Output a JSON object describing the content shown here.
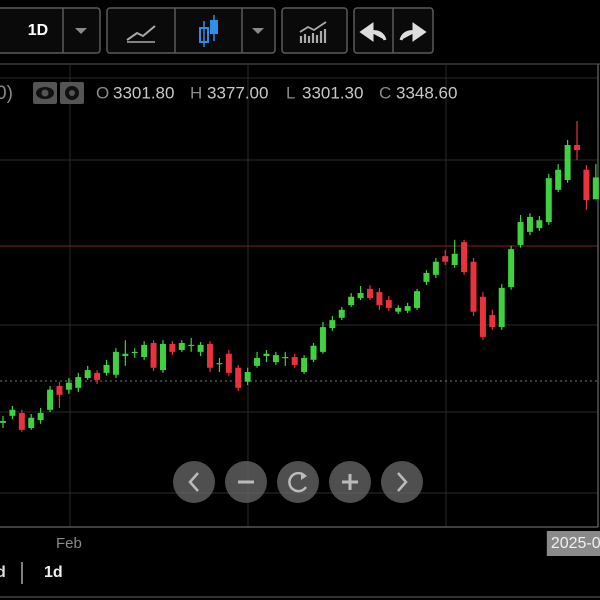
{
  "toolbar": {
    "interval": "1D"
  },
  "legend_fragment": "0)",
  "legend": {
    "labels": [
      "O",
      "H",
      "L",
      "C"
    ],
    "values": [
      "3301.80",
      "3377.00",
      "3301.30",
      "3348.60"
    ]
  },
  "footer": {
    "intervals": [
      "d",
      "1d"
    ]
  },
  "chart_data": {
    "type": "candlestick",
    "categories": [
      null,
      null,
      null,
      null,
      null,
      null,
      null,
      "Feb",
      null,
      null,
      null,
      null,
      null,
      null,
      null,
      null,
      null,
      null,
      null,
      null,
      null,
      null,
      null,
      null,
      null,
      null,
      null,
      null,
      null,
      null,
      null,
      null,
      null,
      null,
      null,
      null,
      null,
      null,
      null,
      null,
      null,
      null,
      null,
      null,
      null,
      null,
      null,
      null,
      null,
      null,
      null,
      null,
      null,
      null,
      null,
      null,
      null,
      null,
      null,
      null,
      null,
      null,
      null,
      "2025-0"
    ],
    "open": [
      2823,
      2838,
      2844,
      2812,
      2829,
      2851,
      2902,
      2894,
      2898,
      2919,
      2930,
      2930,
      2926,
      2966,
      2973,
      2964,
      2994,
      2936,
      2992,
      2979,
      2988,
      2975,
      2992,
      2949,
      2971,
      2941,
      2911,
      2945,
      2966,
      2953,
      2962,
      2964,
      2932,
      2958,
      2975,
      3026,
      3048,
      3075,
      3090,
      3110,
      3103,
      3086,
      3061,
      3063,
      3069,
      3125,
      3140,
      3180,
      3161,
      3210,
      3168,
      3093,
      3054,
      3028,
      3114,
      3204,
      3232,
      3240,
      3253,
      3322,
      3343,
      3418,
      3365,
      3301.8
    ],
    "high": [
      2838,
      2859,
      2851,
      2842,
      2855,
      2902,
      2911,
      2919,
      2930,
      2945,
      2936,
      2958,
      2983,
      3000,
      2983,
      2998,
      3000,
      3000,
      2998,
      3000,
      3005,
      2996,
      2998,
      2962,
      2979,
      2947,
      2941,
      2975,
      2979,
      2975,
      2975,
      2971,
      2968,
      2994,
      3039,
      3052,
      3071,
      3101,
      3116,
      3118,
      3112,
      3095,
      3075,
      3080,
      3110,
      3150,
      3176,
      3193,
      3215,
      3215,
      3176,
      3103,
      3065,
      3120,
      3202,
      3268,
      3272,
      3266,
      3356,
      3377,
      3429,
      3469,
      3375,
      3377
    ],
    "low": [
      2812,
      2831,
      2804,
      2808,
      2821,
      2846,
      2855,
      2885,
      2889,
      2915,
      2906,
      2924,
      2919,
      2945,
      2962,
      2958,
      2934,
      2930,
      2968,
      2975,
      2975,
      2966,
      2932,
      2932,
      2924,
      2891,
      2904,
      2941,
      2953,
      2947,
      2945,
      2941,
      2928,
      2953,
      2971,
      3020,
      3043,
      3071,
      3086,
      3086,
      3065,
      3063,
      3056,
      3058,
      3065,
      3118,
      3133,
      3161,
      3155,
      3140,
      3052,
      3001,
      3022,
      3022,
      3108,
      3198,
      3225,
      3234,
      3247,
      3317,
      3337,
      3386,
      3279,
      3301.3
    ],
    "close": [
      2827,
      2851,
      2808,
      2834,
      2844,
      2894,
      2883,
      2909,
      2921,
      2936,
      2915,
      2947,
      2975,
      2971,
      2975,
      2990,
      2941,
      2992,
      2975,
      2994,
      2990,
      2990,
      2941,
      2951,
      2930,
      2898,
      2932,
      2962,
      2971,
      2968,
      2964,
      2947,
      2962,
      2988,
      3028,
      3043,
      3065,
      3093,
      3101,
      3090,
      3075,
      3069,
      3069,
      3073,
      3105,
      3144,
      3168,
      3168,
      3185,
      3146,
      3061,
      3007,
      3028,
      3112,
      3195,
      3253,
      3264,
      3257,
      3347,
      3365,
      3418,
      3407,
      3300,
      3348.6
    ],
    "up_color": "#3fd13f",
    "down_color": "#e8323c",
    "ylim": [
      2600,
      3600
    ]
  }
}
